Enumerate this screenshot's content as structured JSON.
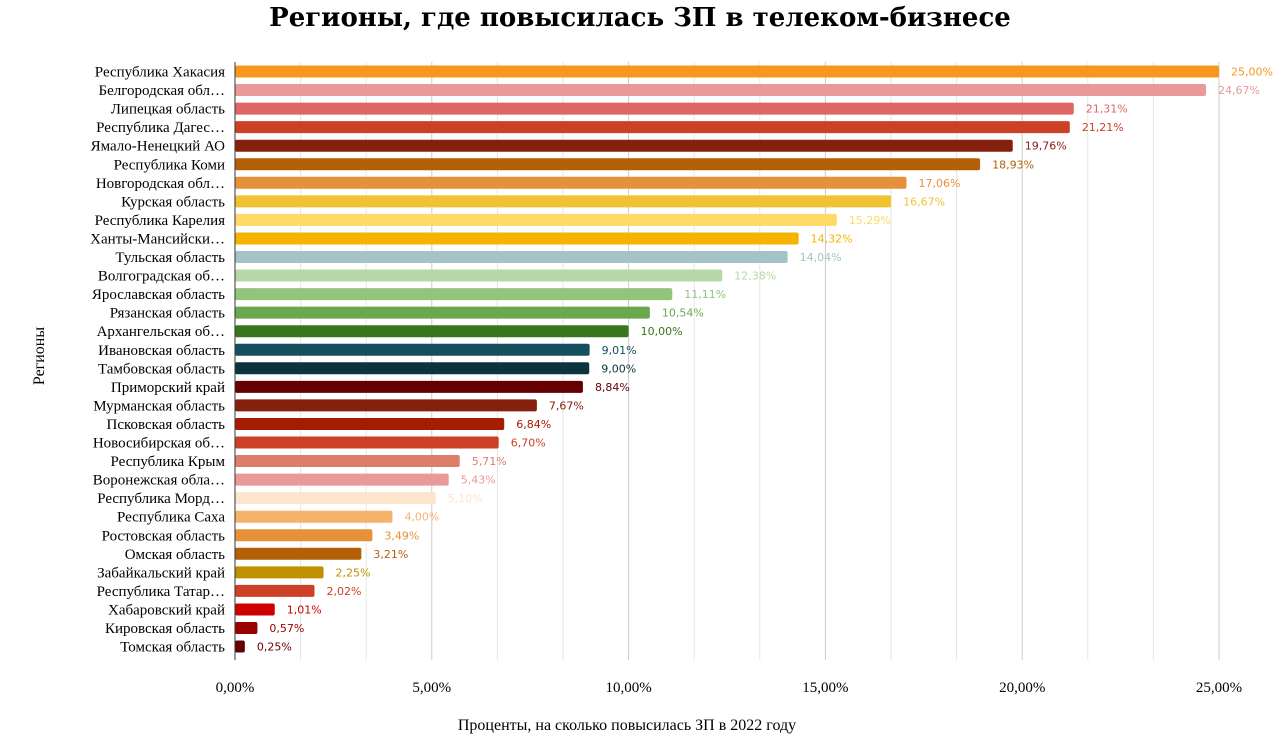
{
  "chart_data": {
    "type": "bar",
    "orientation": "horizontal",
    "title": "Регионы, где повысилась ЗП в телеком-бизнесе",
    "xlabel": "Проценты, на сколько повысилась ЗП в 2022 году",
    "ylabel": "Регионы",
    "xlim": [
      0,
      25
    ],
    "grid": true,
    "legend": "none",
    "x_ticks": [
      "0,00%",
      "5,00%",
      "10,00%",
      "15,00%",
      "20,00%",
      "25,00%"
    ],
    "categories": [
      "Республика Хакасия",
      "Белгородская обл…",
      "Липецкая область",
      "Республика Дагес…",
      "Ямало-Ненецкий АО",
      "Республика Коми",
      "Новгородская обл…",
      "Курская область",
      "Республика Карелия",
      "Ханты-Мансийски…",
      "Тульская область",
      "Волгоградская об…",
      "Ярославская область",
      "Рязанская область",
      "Архангельская об…",
      "Ивановская область",
      "Тамбовская область",
      "Приморский край",
      "Мурманская область",
      "Псковская область",
      "Новосибирская об…",
      "Республика Крым",
      "Воронежская обла…",
      "Республика Морд…",
      "Республика Саха",
      "Ростовская область",
      "Омская область",
      "Забайкальский край",
      "Республика Татар…",
      "Хабаровский край",
      "Кировская область",
      "Томская область"
    ],
    "values": [
      25.0,
      24.67,
      21.31,
      21.21,
      19.76,
      18.93,
      17.06,
      16.67,
      15.29,
      14.32,
      14.04,
      12.38,
      11.11,
      10.54,
      10.0,
      9.01,
      9.0,
      8.84,
      7.67,
      6.84,
      6.7,
      5.71,
      5.43,
      5.1,
      4.0,
      3.49,
      3.21,
      2.25,
      2.02,
      1.01,
      0.57,
      0.25
    ],
    "value_labels": [
      "25,00%",
      "24,67%",
      "21,31%",
      "21,21%",
      "19,76%",
      "18,93%",
      "17,06%",
      "16,67%",
      "15,29%",
      "14,32%",
      "14,04%",
      "12,38%",
      "11,11%",
      "10,54%",
      "10,00%",
      "9,01%",
      "9,00%",
      "8,84%",
      "7,67%",
      "6,84%",
      "6,70%",
      "5,71%",
      "5,43%",
      "5,10%",
      "4,00%",
      "3,49%",
      "3,21%",
      "2,25%",
      "2,02%",
      "1,01%",
      "0,57%",
      "0,25%"
    ],
    "colors": [
      "#F7981D",
      "#EA9999",
      "#E06666",
      "#CC4125",
      "#85200C",
      "#B45F06",
      "#E69138",
      "#F1C232",
      "#FFD966",
      "#F4B400",
      "#A2C4C9",
      "#B6D7A8",
      "#93C47D",
      "#6AA84F",
      "#38761D",
      "#134F5C",
      "#0C343D",
      "#660000",
      "#85200C",
      "#A61C00",
      "#CC4125",
      "#DD7E6B",
      "#EA9999",
      "#FCE5CD",
      "#F6B26B",
      "#E69138",
      "#B45F06",
      "#BF9000",
      "#CC4125",
      "#CC0000",
      "#990000",
      "#660000"
    ]
  }
}
